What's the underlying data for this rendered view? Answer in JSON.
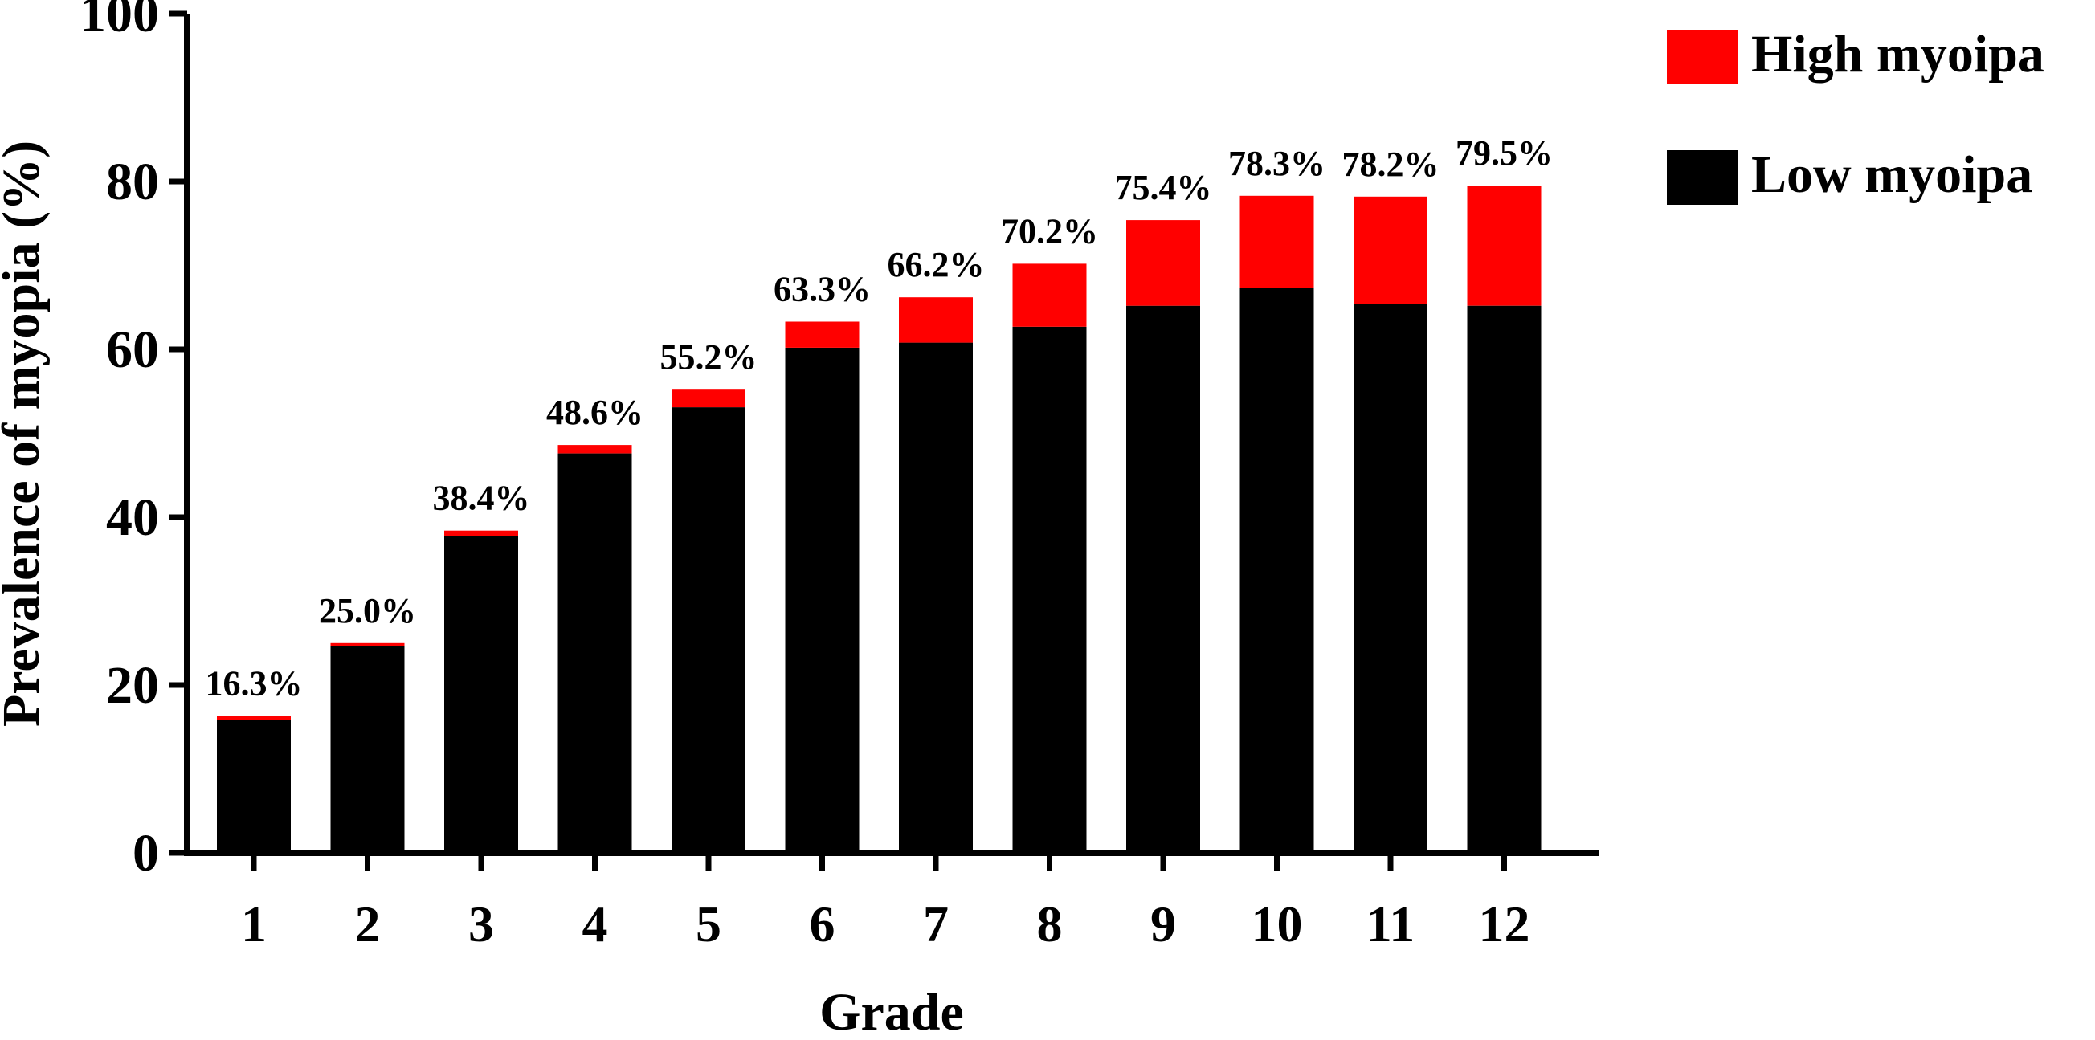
{
  "chart_data": {
    "type": "bar",
    "stacked": true,
    "xlabel": "Grade",
    "ylabel": "Prevalence of myopia (%)",
    "ylim": [
      0,
      100
    ],
    "yticks": [
      "0",
      "20",
      "40",
      "60",
      "80",
      "100"
    ],
    "categories": [
      "1",
      "2",
      "3",
      "4",
      "5",
      "6",
      "7",
      "8",
      "9",
      "10",
      "11",
      "12"
    ],
    "series": [
      {
        "name": "Low myoipa",
        "color": "#000000",
        "values": [
          15.8,
          24.6,
          37.8,
          47.6,
          53.1,
          60.2,
          60.8,
          62.7,
          65.2,
          67.3,
          65.4,
          65.2
        ]
      },
      {
        "name": "High myoipa",
        "color": "#ff0000",
        "values": [
          0.5,
          0.4,
          0.6,
          1.0,
          2.1,
          3.1,
          5.4,
          7.5,
          10.2,
          11.0,
          12.8,
          14.3
        ]
      }
    ],
    "totals_labels": [
      "16.3%",
      "25.0%",
      "38.4%",
      "48.6%",
      "55.2%",
      "63.3%",
      "66.2%",
      "70.2%",
      "75.4%",
      "78.3%",
      "78.2%",
      "79.5%"
    ],
    "legend": {
      "position": "top-right",
      "order": [
        "High myoipa",
        "Low myoipa"
      ]
    },
    "grid": false
  }
}
